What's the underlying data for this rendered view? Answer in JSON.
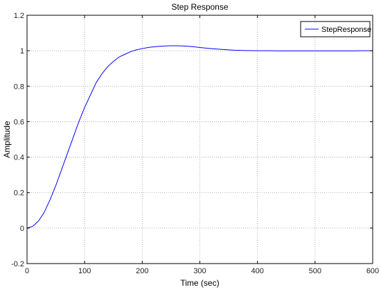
{
  "chart_data": {
    "type": "line",
    "title": "Step Response",
    "xlabel": "Time (sec)",
    "ylabel": "Amplitude",
    "xlim": [
      0,
      600
    ],
    "ylim": [
      -0.2,
      1.2
    ],
    "x_ticks": [
      0,
      100,
      200,
      300,
      400,
      500,
      600
    ],
    "y_ticks": [
      -0.2,
      0,
      0.2,
      0.4,
      0.6,
      0.8,
      1,
      1.2
    ],
    "grid": true,
    "legend_position": "top-right",
    "series": [
      {
        "name": "StepResponse",
        "color": "#0000ff",
        "x": [
          0,
          10,
          20,
          30,
          40,
          50,
          60,
          70,
          80,
          90,
          100,
          110,
          120,
          130,
          140,
          150,
          160,
          170,
          180,
          190,
          200,
          210,
          220,
          230,
          240,
          250,
          260,
          270,
          280,
          290,
          300,
          320,
          340,
          360,
          380,
          400,
          420,
          440,
          460,
          480,
          500,
          520,
          540,
          560,
          580,
          600
        ],
        "values": [
          0,
          0.01,
          0.04,
          0.09,
          0.16,
          0.24,
          0.33,
          0.42,
          0.51,
          0.6,
          0.68,
          0.75,
          0.82,
          0.87,
          0.91,
          0.94,
          0.965,
          0.98,
          0.995,
          1.005,
          1.012,
          1.018,
          1.022,
          1.025,
          1.027,
          1.028,
          1.028,
          1.027,
          1.025,
          1.022,
          1.018,
          1.012,
          1.007,
          1.003,
          1.001,
          1.0,
          1.0,
          0.999,
          0.999,
          0.999,
          0.999,
          0.999,
          0.999,
          0.999,
          1.0,
          1.0
        ]
      }
    ]
  }
}
